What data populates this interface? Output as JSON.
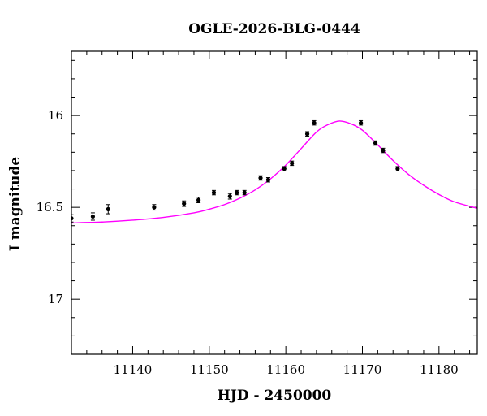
{
  "chart_data": {
    "type": "scatter",
    "title": "OGLE-2026-BLG-0444",
    "xlabel": "HJD - 2450000",
    "ylabel": "I magnitude",
    "xlim": [
      11132,
      11185
    ],
    "ylim": [
      17.3,
      15.65
    ],
    "y_inverted": true,
    "x_ticks": [
      "11140",
      "11150",
      "11160",
      "11170",
      "11180"
    ],
    "y_ticks": [
      "16",
      "16.5",
      "17"
    ],
    "grid": false,
    "legend": "none",
    "series": [
      {
        "kind": "points_with_errorbars",
        "color": "#000000",
        "points": [
          {
            "x": 11132.0,
            "y": 16.56,
            "err": 0.02
          },
          {
            "x": 11134.8,
            "y": 16.55,
            "err": 0.02
          },
          {
            "x": 11136.8,
            "y": 16.51,
            "err": 0.025
          },
          {
            "x": 11142.8,
            "y": 16.5,
            "err": 0.015
          },
          {
            "x": 11146.7,
            "y": 16.48,
            "err": 0.015
          },
          {
            "x": 11148.6,
            "y": 16.46,
            "err": 0.015
          },
          {
            "x": 11150.6,
            "y": 16.42,
            "err": 0.012
          },
          {
            "x": 11152.7,
            "y": 16.44,
            "err": 0.015
          },
          {
            "x": 11153.6,
            "y": 16.42,
            "err": 0.012
          },
          {
            "x": 11154.6,
            "y": 16.42,
            "err": 0.012
          },
          {
            "x": 11156.7,
            "y": 16.34,
            "err": 0.012
          },
          {
            "x": 11157.7,
            "y": 16.35,
            "err": 0.012
          },
          {
            "x": 11159.8,
            "y": 16.29,
            "err": 0.012
          },
          {
            "x": 11160.8,
            "y": 16.26,
            "err": 0.012
          },
          {
            "x": 11162.8,
            "y": 16.1,
            "err": 0.012
          },
          {
            "x": 11163.7,
            "y": 16.04,
            "err": 0.012
          },
          {
            "x": 11169.8,
            "y": 16.04,
            "err": 0.012
          },
          {
            "x": 11171.7,
            "y": 16.15,
            "err": 0.012
          },
          {
            "x": 11172.7,
            "y": 16.19,
            "err": 0.012
          },
          {
            "x": 11174.6,
            "y": 16.29,
            "err": 0.012
          }
        ]
      },
      {
        "kind": "model_curve",
        "color": "#ff00ff",
        "points": [
          {
            "x": 11132,
            "y": 16.585
          },
          {
            "x": 11136,
            "y": 16.58
          },
          {
            "x": 11140,
            "y": 16.57
          },
          {
            "x": 11144,
            "y": 16.555
          },
          {
            "x": 11148,
            "y": 16.53
          },
          {
            "x": 11150,
            "y": 16.51
          },
          {
            "x": 11152,
            "y": 16.485
          },
          {
            "x": 11154,
            "y": 16.45
          },
          {
            "x": 11156,
            "y": 16.405
          },
          {
            "x": 11158,
            "y": 16.345
          },
          {
            "x": 11160,
            "y": 16.27
          },
          {
            "x": 11162,
            "y": 16.18
          },
          {
            "x": 11164,
            "y": 16.09
          },
          {
            "x": 11165.5,
            "y": 16.05
          },
          {
            "x": 11167,
            "y": 16.03
          },
          {
            "x": 11168.5,
            "y": 16.045
          },
          {
            "x": 11170,
            "y": 16.08
          },
          {
            "x": 11172,
            "y": 16.16
          },
          {
            "x": 11174,
            "y": 16.245
          },
          {
            "x": 11176,
            "y": 16.32
          },
          {
            "x": 11178,
            "y": 16.38
          },
          {
            "x": 11180,
            "y": 16.43
          },
          {
            "x": 11182,
            "y": 16.47
          },
          {
            "x": 11185,
            "y": 16.505
          }
        ]
      }
    ]
  }
}
